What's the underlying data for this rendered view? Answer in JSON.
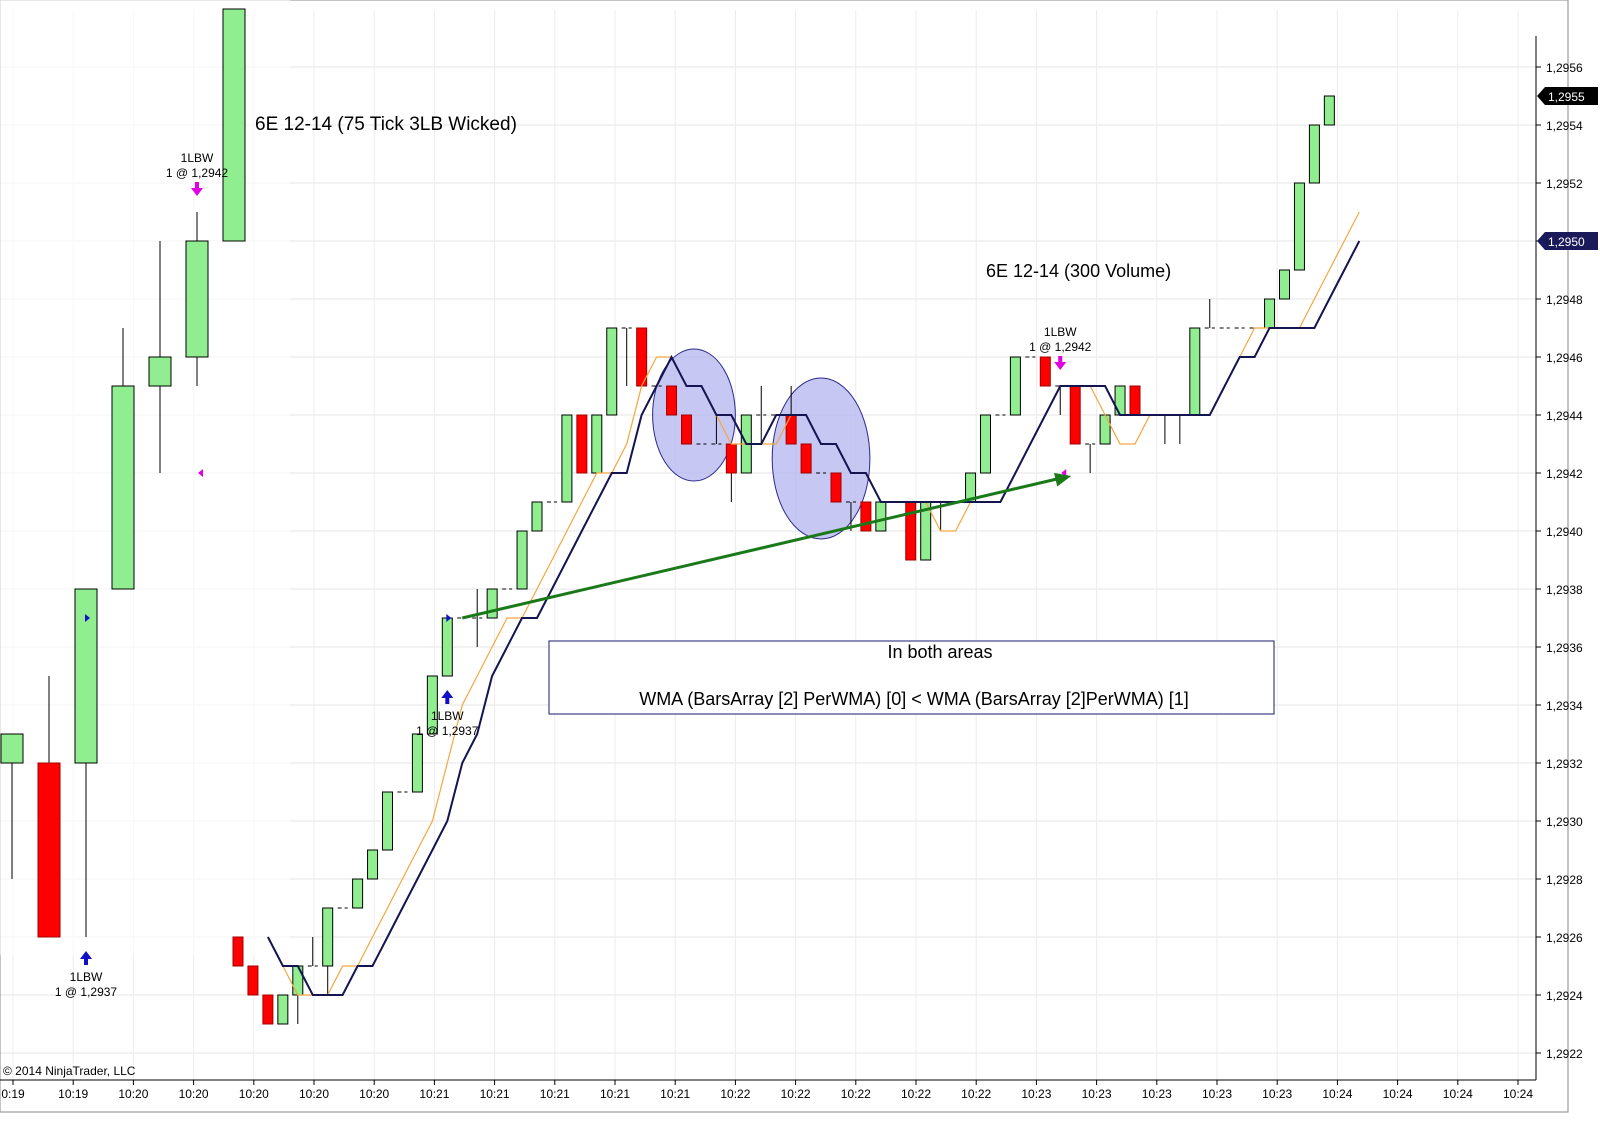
{
  "chart_data": [
    {
      "type": "candlestick",
      "title": "6E 12-14 (75 Tick 3LB Wicked)",
      "bullish_color": "#90ee90",
      "bearish_color": "#ff0000",
      "bars": [
        {
          "o": 1.2932,
          "h": 1.2933,
          "l": 1.2928,
          "c": 1.2933
        },
        {
          "o": 1.2932,
          "h": 1.2935,
          "l": 1.2926,
          "c": 1.2926
        },
        {
          "o": 1.2932,
          "h": 1.2938,
          "l": 1.2926,
          "c": 1.2938
        },
        {
          "o": 1.2938,
          "h": 1.2947,
          "l": 1.2938,
          "c": 1.2945
        },
        {
          "o": 1.2945,
          "h": 1.295,
          "l": 1.2942,
          "c": 1.2946
        },
        {
          "o": 1.2946,
          "h": 1.2951,
          "l": 1.2945,
          "c": 1.295
        },
        {
          "o": 1.295,
          "h": 1.2958,
          "l": 1.295,
          "c": 1.2958
        }
      ],
      "signals": [
        {
          "bar": 2,
          "side": "long",
          "label": "1LBW",
          "detail": "1 @ 1,2937",
          "price": 1.2937
        },
        {
          "bar": 5,
          "side": "short",
          "label": "1LBW",
          "detail": "1 @ 1,2942",
          "price": 1.2942
        }
      ],
      "x_tick_labels": [
        "0:19",
        "10:19",
        "10:20",
        "10:20",
        "10:20"
      ]
    },
    {
      "type": "candlestick",
      "title": "6E 12-14 (300 Volume)",
      "bullish_color": "#90ee90",
      "bearish_color": "#ff0000",
      "bars": [
        {
          "o": 1.2926,
          "h": 1.2926,
          "l": 1.2925,
          "c": 1.2925
        },
        {
          "o": 1.2925,
          "h": 1.2925,
          "l": 1.2924,
          "c": 1.2924
        },
        {
          "o": 1.2924,
          "h": 1.2924,
          "l": 1.2923,
          "c": 1.2923
        },
        {
          "o": 1.2923,
          "h": 1.2924,
          "l": 1.2923,
          "c": 1.2924
        },
        {
          "o": 1.2924,
          "h": 1.2925,
          "l": 1.2923,
          "c": 1.2925
        },
        {
          "o": 1.2925,
          "h": 1.2926,
          "l": 1.2925,
          "c": 1.2925
        },
        {
          "o": 1.2925,
          "h": 1.2927,
          "l": 1.2924,
          "c": 1.2927
        },
        {
          "o": 1.2927,
          "h": 1.2927,
          "l": 1.2927,
          "c": 1.2927
        },
        {
          "o": 1.2927,
          "h": 1.2928,
          "l": 1.2927,
          "c": 1.2928
        },
        {
          "o": 1.2928,
          "h": 1.2929,
          "l": 1.2928,
          "c": 1.2929
        },
        {
          "o": 1.2929,
          "h": 1.2931,
          "l": 1.2929,
          "c": 1.2931
        },
        {
          "o": 1.2931,
          "h": 1.2931,
          "l": 1.2931,
          "c": 1.2931
        },
        {
          "o": 1.2931,
          "h": 1.2933,
          "l": 1.2931,
          "c": 1.2933
        },
        {
          "o": 1.2933,
          "h": 1.2935,
          "l": 1.2933,
          "c": 1.2935
        },
        {
          "o": 1.2935,
          "h": 1.2937,
          "l": 1.2935,
          "c": 1.2937
        },
        {
          "o": 1.2937,
          "h": 1.2937,
          "l": 1.2937,
          "c": 1.2937
        },
        {
          "o": 1.2937,
          "h": 1.2938,
          "l": 1.2936,
          "c": 1.2937
        },
        {
          "o": 1.2937,
          "h": 1.2938,
          "l": 1.2937,
          "c": 1.2938
        },
        {
          "o": 1.2938,
          "h": 1.2938,
          "l": 1.2938,
          "c": 1.2938
        },
        {
          "o": 1.2938,
          "h": 1.294,
          "l": 1.2938,
          "c": 1.294
        },
        {
          "o": 1.294,
          "h": 1.2941,
          "l": 1.294,
          "c": 1.2941
        },
        {
          "o": 1.2941,
          "h": 1.2941,
          "l": 1.2941,
          "c": 1.2941
        },
        {
          "o": 1.2941,
          "h": 1.2944,
          "l": 1.2941,
          "c": 1.2944
        },
        {
          "o": 1.2944,
          "h": 1.2944,
          "l": 1.2942,
          "c": 1.2942
        },
        {
          "o": 1.2942,
          "h": 1.2944,
          "l": 1.2942,
          "c": 1.2944
        },
        {
          "o": 1.2944,
          "h": 1.2947,
          "l": 1.2944,
          "c": 1.2947
        },
        {
          "o": 1.2947,
          "h": 1.2947,
          "l": 1.2945,
          "c": 1.2947
        },
        {
          "o": 1.2947,
          "h": 1.2947,
          "l": 1.2945,
          "c": 1.2945
        },
        {
          "o": 1.2945,
          "h": 1.2945,
          "l": 1.2945,
          "c": 1.2945
        },
        {
          "o": 1.2945,
          "h": 1.2945,
          "l": 1.2944,
          "c": 1.2944
        },
        {
          "o": 1.2944,
          "h": 1.2944,
          "l": 1.2943,
          "c": 1.2943
        },
        {
          "o": 1.2943,
          "h": 1.2943,
          "l": 1.2943,
          "c": 1.2943
        },
        {
          "o": 1.2943,
          "h": 1.2944,
          "l": 1.2943,
          "c": 1.2943
        },
        {
          "o": 1.2943,
          "h": 1.2943,
          "l": 1.2941,
          "c": 1.2942
        },
        {
          "o": 1.2942,
          "h": 1.2944,
          "l": 1.2942,
          "c": 1.2944
        },
        {
          "o": 1.2944,
          "h": 1.2945,
          "l": 1.2943,
          "c": 1.2944
        },
        {
          "o": 1.2944,
          "h": 1.2944,
          "l": 1.2944,
          "c": 1.2944
        },
        {
          "o": 1.2944,
          "h": 1.2945,
          "l": 1.2943,
          "c": 1.2943
        },
        {
          "o": 1.2943,
          "h": 1.2943,
          "l": 1.2942,
          "c": 1.2942
        },
        {
          "o": 1.2942,
          "h": 1.2942,
          "l": 1.2942,
          "c": 1.2942
        },
        {
          "o": 1.2942,
          "h": 1.2942,
          "l": 1.2941,
          "c": 1.2941
        },
        {
          "o": 1.2941,
          "h": 1.2941,
          "l": 1.294,
          "c": 1.2941
        },
        {
          "o": 1.2941,
          "h": 1.2941,
          "l": 1.294,
          "c": 1.294
        },
        {
          "o": 1.294,
          "h": 1.2941,
          "l": 1.294,
          "c": 1.2941
        },
        {
          "o": 1.2941,
          "h": 1.2941,
          "l": 1.2941,
          "c": 1.2941
        },
        {
          "o": 1.2941,
          "h": 1.2941,
          "l": 1.2939,
          "c": 1.2939
        },
        {
          "o": 1.2939,
          "h": 1.2941,
          "l": 1.2939,
          "c": 1.2941
        },
        {
          "o": 1.2941,
          "h": 1.2941,
          "l": 1.294,
          "c": 1.2941
        },
        {
          "o": 1.2941,
          "h": 1.2941,
          "l": 1.2941,
          "c": 1.2941
        },
        {
          "o": 1.2941,
          "h": 1.2942,
          "l": 1.2941,
          "c": 1.2942
        },
        {
          "o": 1.2942,
          "h": 1.2944,
          "l": 1.2942,
          "c": 1.2944
        },
        {
          "o": 1.2944,
          "h": 1.2944,
          "l": 1.2944,
          "c": 1.2944
        },
        {
          "o": 1.2944,
          "h": 1.2946,
          "l": 1.2944,
          "c": 1.2946
        },
        {
          "o": 1.2946,
          "h": 1.2946,
          "l": 1.2946,
          "c": 1.2946
        },
        {
          "o": 1.2946,
          "h": 1.2946,
          "l": 1.2945,
          "c": 1.2945
        },
        {
          "o": 1.2945,
          "h": 1.2945,
          "l": 1.2944,
          "c": 1.2945
        },
        {
          "o": 1.2945,
          "h": 1.2945,
          "l": 1.2943,
          "c": 1.2943
        },
        {
          "o": 1.2943,
          "h": 1.2943,
          "l": 1.2942,
          "c": 1.2943
        },
        {
          "o": 1.2943,
          "h": 1.2944,
          "l": 1.2943,
          "c": 1.2944
        },
        {
          "o": 1.2944,
          "h": 1.2945,
          "l": 1.2944,
          "c": 1.2945
        },
        {
          "o": 1.2945,
          "h": 1.2945,
          "l": 1.2944,
          "c": 1.2944
        },
        {
          "o": 1.2944,
          "h": 1.2944,
          "l": 1.2944,
          "c": 1.2944
        },
        {
          "o": 1.2944,
          "h": 1.2944,
          "l": 1.2943,
          "c": 1.2944
        },
        {
          "o": 1.2944,
          "h": 1.2944,
          "l": 1.2943,
          "c": 1.2944
        },
        {
          "o": 1.2944,
          "h": 1.2947,
          "l": 1.2944,
          "c": 1.2947
        },
        {
          "o": 1.2947,
          "h": 1.2948,
          "l": 1.2947,
          "c": 1.2947
        },
        {
          "o": 1.2947,
          "h": 1.2947,
          "l": 1.2947,
          "c": 1.2947
        },
        {
          "o": 1.2947,
          "h": 1.2947,
          "l": 1.2947,
          "c": 1.2947
        },
        {
          "o": 1.2947,
          "h": 1.2947,
          "l": 1.2947,
          "c": 1.2947
        },
        {
          "o": 1.2947,
          "h": 1.2948,
          "l": 1.2947,
          "c": 1.2948
        },
        {
          "o": 1.2948,
          "h": 1.2949,
          "l": 1.2948,
          "c": 1.2949
        },
        {
          "o": 1.2949,
          "h": 1.2952,
          "l": 1.2949,
          "c": 1.2952
        },
        {
          "o": 1.2952,
          "h": 1.2954,
          "l": 1.2952,
          "c": 1.2954
        },
        {
          "o": 1.2954,
          "h": 1.2955,
          "l": 1.2954,
          "c": 1.2955
        }
      ],
      "wma_fast": [
        1.2926,
        1.2925,
        1.2924,
        1.2924,
        1.2924,
        1.2925,
        1.2925,
        1.2926,
        1.2927,
        1.2928,
        1.2929,
        1.293,
        1.2932,
        1.2934,
        1.2935,
        1.2936,
        1.2937,
        1.2937,
        1.2938,
        1.2939,
        1.294,
        1.2941,
        1.2942,
        1.2942,
        1.2943,
        1.2945,
        1.2946,
        1.2946,
        1.2945,
        1.2945,
        1.2944,
        1.2943,
        1.2943,
        1.2943,
        1.2943,
        1.2944,
        1.2944,
        1.2943,
        1.2943,
        1.2942,
        1.2942,
        1.2941,
        1.2941,
        1.2941,
        1.2941,
        1.294,
        1.294,
        1.2941,
        1.2941,
        1.2941,
        1.2942,
        1.2943,
        1.2944,
        1.2945,
        1.2945,
        1.2945,
        1.2944,
        1.2943,
        1.2943,
        1.2944,
        1.2944,
        1.2944,
        1.2944,
        1.2944,
        1.2945,
        1.2946,
        1.2947,
        1.2947,
        1.2947,
        1.2947,
        1.2948,
        1.2949,
        1.295,
        1.2951
      ],
      "wma_slow": [
        1.2926,
        1.2925,
        1.2925,
        1.2924,
        1.2924,
        1.2924,
        1.2925,
        1.2925,
        1.2926,
        1.2927,
        1.2928,
        1.2929,
        1.293,
        1.2932,
        1.2933,
        1.2935,
        1.2936,
        1.2937,
        1.2937,
        1.2938,
        1.2939,
        1.294,
        1.2941,
        1.2942,
        1.2942,
        1.2944,
        1.2945,
        1.2946,
        1.2945,
        1.2945,
        1.2944,
        1.2944,
        1.2943,
        1.2943,
        1.2944,
        1.2944,
        1.2944,
        1.2943,
        1.2943,
        1.2942,
        1.2942,
        1.2941,
        1.2941,
        1.2941,
        1.2941,
        1.2941,
        1.2941,
        1.2941,
        1.2941,
        1.2941,
        1.2942,
        1.2943,
        1.2944,
        1.2945,
        1.2945,
        1.2945,
        1.2945,
        1.2944,
        1.2944,
        1.2944,
        1.2944,
        1.2944,
        1.2944,
        1.2944,
        1.2945,
        1.2946,
        1.2946,
        1.2947,
        1.2947,
        1.2947,
        1.2947,
        1.2948,
        1.2949,
        1.295
      ],
      "wma_fast_color": "#f4a640",
      "wma_slow_color": "#141450",
      "y_ticks": [
        "1,2922",
        "1,2924",
        "1,2926",
        "1,2928",
        "1,2930",
        "1,2932",
        "1,2934",
        "1,2936",
        "1,2938",
        "1,2940",
        "1,2942",
        "1,2944",
        "1,2946",
        "1,2948",
        "1,2950",
        "1,2952",
        "1,2954",
        "1,2956"
      ],
      "ylim": [
        1.2921,
        1.2957
      ],
      "price_badges": [
        {
          "text": "1,2955",
          "value": 1.2955,
          "color": "#000000"
        },
        {
          "text": "1,2950",
          "value": 1.295,
          "color": "#1a1a5a"
        }
      ],
      "x_tick_labels": [
        "10:20",
        "10:20",
        "10:21",
        "10:21",
        "10:21",
        "10:21",
        "10:21",
        "10:22",
        "10:22",
        "10:22",
        "10:22",
        "10:22",
        "10:23",
        "10:23",
        "10:23",
        "10:23",
        "10:23",
        "10:24",
        "10:24",
        "10:24",
        "10:24"
      ],
      "signals": [
        {
          "bar": 14,
          "side": "long",
          "label": "1LBW",
          "detail": "1 @ 1,2937",
          "price": 1.2937
        },
        {
          "bar": 55,
          "side": "short",
          "label": "1LBW",
          "detail": "1 @ 1,2942",
          "price": 1.2942
        }
      ],
      "highlight_areas": [
        {
          "from_bar": 28,
          "to_bar": 33,
          "price_top": 1.2946,
          "price_bottom": 1.2942,
          "color": "#b4b4f0"
        },
        {
          "from_bar": 36,
          "to_bar": 42,
          "price_top": 1.2945,
          "price_bottom": 1.294,
          "color": "#b4b4f0"
        }
      ],
      "trend_arrow": {
        "from_bar": 15,
        "from_price": 1.2937,
        "to_bar": 56,
        "to_price": 1.2942,
        "color": "#1a7a1a"
      }
    }
  ],
  "annotation": {
    "title": "In both areas",
    "formula": "WMA (BarsArray [2] PerWMA) [0] < WMA (BarsArray [2]PerWMA) [1]"
  },
  "copyright": "© 2014 NinjaTrader, LLC"
}
